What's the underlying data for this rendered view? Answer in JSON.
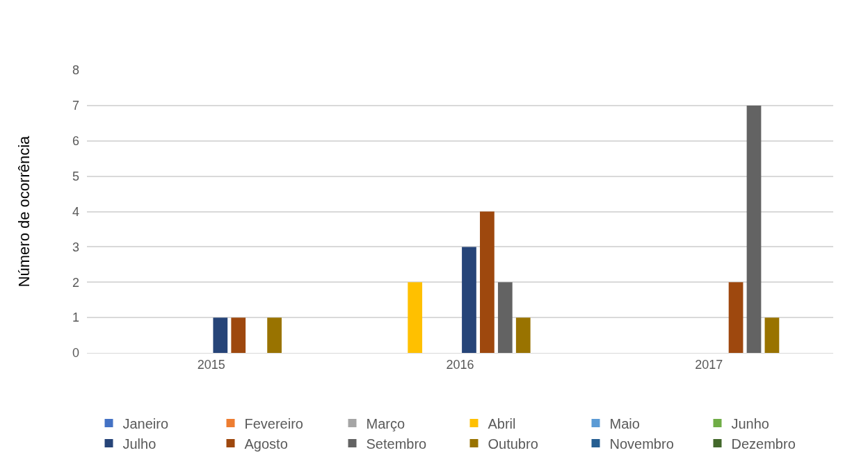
{
  "chart_data": {
    "type": "bar",
    "ylabel": "Número de ocorrência",
    "categories": [
      "2015",
      "2016",
      "2017"
    ],
    "series": [
      {
        "name": "Janeiro",
        "color": "#4472c4",
        "values": [
          0,
          0,
          0
        ]
      },
      {
        "name": "Fevereiro",
        "color": "#ed7d31",
        "values": [
          0,
          0,
          0
        ]
      },
      {
        "name": "Março",
        "color": "#a5a5a5",
        "values": [
          0,
          0,
          0
        ]
      },
      {
        "name": "Abril",
        "color": "#ffc000",
        "values": [
          0,
          2,
          0
        ]
      },
      {
        "name": "Maio",
        "color": "#5b9bd5",
        "values": [
          0,
          0,
          0
        ]
      },
      {
        "name": "Junho",
        "color": "#70ad47",
        "values": [
          0,
          0,
          0
        ]
      },
      {
        "name": "Julho",
        "color": "#264478",
        "values": [
          1,
          3,
          0
        ]
      },
      {
        "name": "Agosto",
        "color": "#9e480e",
        "values": [
          1,
          4,
          2
        ]
      },
      {
        "name": "Setembro",
        "color": "#636363",
        "values": [
          0,
          2,
          7
        ]
      },
      {
        "name": "Outubro",
        "color": "#997300",
        "values": [
          1,
          1,
          1
        ]
      },
      {
        "name": "Novembro",
        "color": "#255e91",
        "values": [
          0,
          0,
          0
        ]
      },
      {
        "name": "Dezembro",
        "color": "#43682b",
        "values": [
          0,
          0,
          0
        ]
      }
    ],
    "ylim": [
      0,
      8
    ],
    "yticks": [
      0,
      1,
      2,
      3,
      4,
      5,
      6,
      7,
      8
    ],
    "grid": "y",
    "legend": "bottom"
  }
}
